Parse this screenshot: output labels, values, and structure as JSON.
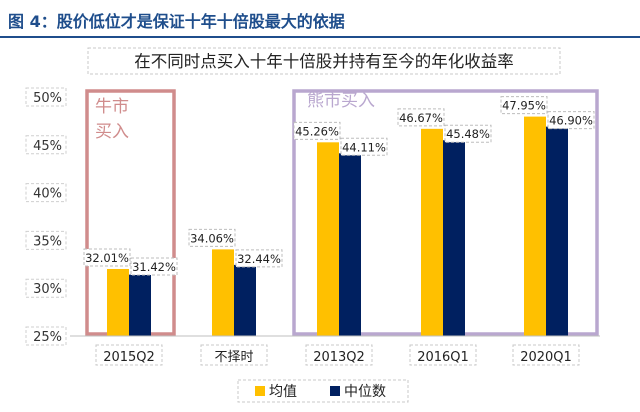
{
  "figure_title": "图 4：股价低位才是保证十年十倍股最大的依据",
  "chart_data": {
    "type": "bar",
    "title": "在不同时点买入十年十倍股并持有至今的年化收益率",
    "categories": [
      "2015Q2",
      "不择时",
      "2013Q2",
      "2016Q1",
      "2020Q1"
    ],
    "series": [
      {
        "name": "均值",
        "color": "#ffc000",
        "values": [
          32.01,
          34.06,
          45.26,
          46.67,
          47.95
        ],
        "labels": [
          "32.01%",
          "34.06%",
          "45.26%",
          "46.67%",
          "47.95%"
        ]
      },
      {
        "name": "中位数",
        "color": "#002060",
        "values": [
          31.42,
          32.44,
          44.11,
          45.48,
          46.9
        ],
        "labels": [
          "31.42%",
          "32.44%",
          "44.11%",
          "45.48%",
          "46.90%"
        ]
      }
    ],
    "yticks": [
      "50%",
      "45%",
      "40%",
      "35%",
      "30%",
      "25%"
    ],
    "ylim": [
      25,
      50
    ],
    "annotations": [
      {
        "text_line1": "牛市",
        "text_line2": "买入",
        "color": "#d08c8c"
      },
      {
        "text": "熊市买入",
        "color": "#b9a7cf"
      }
    ],
    "legend": [
      "均值",
      "中位数"
    ]
  }
}
